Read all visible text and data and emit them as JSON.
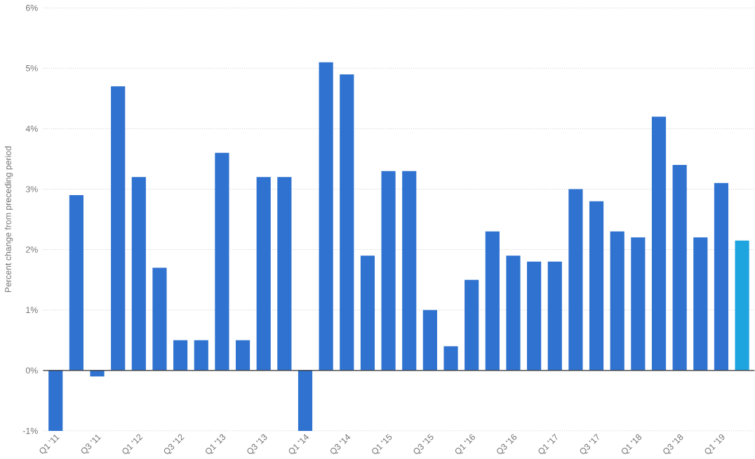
{
  "chart_data": {
    "type": "bar",
    "ylabel": "Percent change from preceding period",
    "categories": [
      "Q1 '11",
      null,
      "Q3 '11",
      null,
      "Q1 '12",
      null,
      "Q3 '12",
      null,
      "Q1 '13",
      null,
      "Q3 '13",
      null,
      "Q1 '14",
      null,
      "Q3 '14",
      null,
      "Q1 '15",
      null,
      "Q3 '15",
      null,
      "Q1 '16",
      null,
      "Q3 '16",
      null,
      "Q1 '17",
      null,
      "Q3 '17",
      null,
      "Q1 '18",
      null,
      "Q3 '18",
      null,
      "Q1 '19",
      null
    ],
    "values": [
      -1.0,
      2.9,
      -0.1,
      4.7,
      3.2,
      1.7,
      0.5,
      0.5,
      3.6,
      0.5,
      3.2,
      3.2,
      -1.0,
      5.1,
      4.9,
      1.9,
      3.3,
      3.3,
      1.0,
      0.4,
      1.5,
      2.3,
      1.9,
      1.8,
      1.8,
      3.0,
      2.8,
      2.3,
      2.2,
      4.2,
      3.4,
      2.2,
      3.1,
      2.15
    ],
    "colors": [
      "#2f72d0",
      "#2f72d0",
      "#2f72d0",
      "#2f72d0",
      "#2f72d0",
      "#2f72d0",
      "#2f72d0",
      "#2f72d0",
      "#2f72d0",
      "#2f72d0",
      "#2f72d0",
      "#2f72d0",
      "#2f72d0",
      "#2f72d0",
      "#2f72d0",
      "#2f72d0",
      "#2f72d0",
      "#2f72d0",
      "#2f72d0",
      "#2f72d0",
      "#2f72d0",
      "#2f72d0",
      "#2f72d0",
      "#2f72d0",
      "#2f72d0",
      "#2f72d0",
      "#2f72d0",
      "#2f72d0",
      "#2f72d0",
      "#2f72d0",
      "#2f72d0",
      "#2f72d0",
      "#2f72d0",
      "#1ea5e0"
    ],
    "ylim": [
      -1,
      6
    ],
    "yticks": [
      {
        "value": -1,
        "label": "-1%"
      },
      {
        "value": 0,
        "label": "0%"
      },
      {
        "value": 1,
        "label": "1%"
      },
      {
        "value": 2,
        "label": "2%"
      },
      {
        "value": 3,
        "label": "3%"
      },
      {
        "value": 4,
        "label": "4%"
      },
      {
        "value": 5,
        "label": "5%"
      },
      {
        "value": 6,
        "label": "6%"
      }
    ],
    "grid": "y"
  }
}
